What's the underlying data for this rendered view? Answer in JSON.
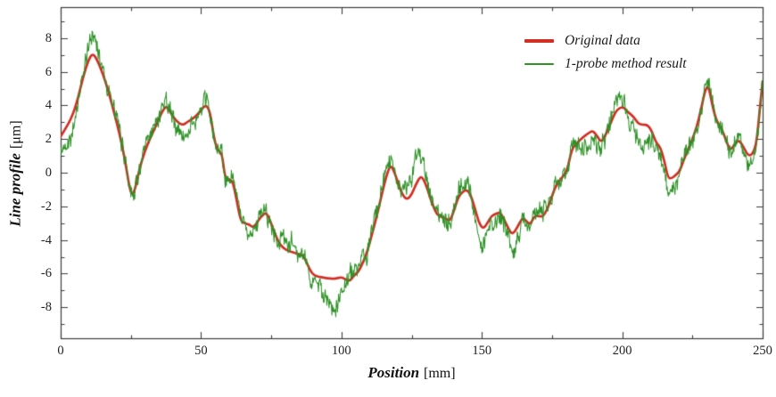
{
  "figure": {
    "background": "#ffffff",
    "axis_color": "#3d3d3d",
    "text_color": "#1a1a1a"
  },
  "chart_data": {
    "type": "line",
    "title": "",
    "xlabel": {
      "main": "Position",
      "unit": "[mm]"
    },
    "ylabel": {
      "main": "Line profile",
      "unit": "[μm]"
    },
    "x_axis": {
      "range": [
        0,
        250
      ],
      "major_ticks": [
        0,
        50,
        100,
        150,
        200,
        250
      ],
      "minor_ticks": [
        25,
        75,
        125,
        175,
        225
      ],
      "tick_labels": [
        "0",
        "50",
        "100",
        "150",
        "200",
        "250"
      ]
    },
    "y_axis": {
      "range": [
        -9.84,
        9.84
      ],
      "major_ticks": [
        -8,
        -6,
        -4,
        -2,
        0,
        2,
        4,
        6,
        8
      ],
      "minor_ticks": [
        -9,
        -7,
        -5,
        -3,
        -1,
        1,
        3,
        5,
        7,
        9
      ],
      "tick_labels": [
        "-8",
        "-6",
        "-4",
        "-2",
        "0",
        "2",
        "4",
        "6",
        "8"
      ]
    },
    "grid": false,
    "legend": {
      "position": "top-right",
      "items": [
        {
          "label": "Original data",
          "color": "#d12f24",
          "line_width": 4
        },
        {
          "label": "1-probe method result",
          "color": "#2e9227",
          "line_width": 2
        }
      ]
    },
    "series": [
      {
        "name": "Original data",
        "color": "#d12f24",
        "width": 2.7,
        "style": "smooth",
        "points": [
          [
            0,
            2.15
          ],
          [
            2,
            2.7
          ],
          [
            4,
            3.3
          ],
          [
            6,
            4.3
          ],
          [
            8,
            5.7
          ],
          [
            10,
            6.75
          ],
          [
            11.5,
            7.1
          ],
          [
            13,
            6.7
          ],
          [
            15,
            5.9
          ],
          [
            17,
            4.85
          ],
          [
            19,
            3.6
          ],
          [
            21,
            2.3
          ],
          [
            23,
            0.7
          ],
          [
            24.5,
            -0.9
          ],
          [
            25.5,
            -1.35
          ],
          [
            26.5,
            -1.0
          ],
          [
            28,
            0.2
          ],
          [
            30,
            1.3
          ],
          [
            32,
            2.1
          ],
          [
            34,
            2.8
          ],
          [
            36,
            3.6
          ],
          [
            37.7,
            4.0
          ],
          [
            39,
            3.6
          ],
          [
            41,
            3.1
          ],
          [
            43.4,
            2.8
          ],
          [
            45,
            3.0
          ],
          [
            47,
            3.2
          ],
          [
            49,
            3.5
          ],
          [
            50.8,
            3.9
          ],
          [
            52,
            4.0
          ],
          [
            53.2,
            3.6
          ],
          [
            54.6,
            2.1
          ],
          [
            55.5,
            1.5
          ],
          [
            56.5,
            1.25
          ],
          [
            57.5,
            1.1
          ],
          [
            58.5,
            -0.3
          ],
          [
            60,
            -0.4
          ],
          [
            61.2,
            -0.5
          ],
          [
            62.2,
            -1.2
          ],
          [
            63.3,
            -2.2
          ],
          [
            64.3,
            -2.9
          ],
          [
            65.5,
            -3.0
          ],
          [
            66.5,
            -3.05
          ],
          [
            67.3,
            -3.1
          ],
          [
            68.4,
            -3.25
          ],
          [
            69.5,
            -3.1
          ],
          [
            70.5,
            -2.8
          ],
          [
            71.5,
            -2.6
          ],
          [
            72.5,
            -2.45
          ],
          [
            73.3,
            -2.4
          ],
          [
            74.5,
            -2.8
          ],
          [
            76,
            -3.5
          ],
          [
            77.8,
            -4.2
          ],
          [
            79.5,
            -4.5
          ],
          [
            81,
            -4.65
          ],
          [
            83,
            -4.75
          ],
          [
            85,
            -4.85
          ],
          [
            86.5,
            -4.95
          ],
          [
            88,
            -5.5
          ],
          [
            89.5,
            -6.0
          ],
          [
            91,
            -6.15
          ],
          [
            92.5,
            -6.2
          ],
          [
            94,
            -6.25
          ],
          [
            96,
            -6.3
          ],
          [
            98,
            -6.3
          ],
          [
            100,
            -6.2
          ],
          [
            101.5,
            -6.35
          ],
          [
            103,
            -6.45
          ],
          [
            104.5,
            -6.1
          ],
          [
            106,
            -5.9
          ],
          [
            107.5,
            -5.4
          ],
          [
            109,
            -4.8
          ],
          [
            111,
            -3.6
          ],
          [
            113,
            -2.3
          ],
          [
            114.5,
            -1.2
          ],
          [
            116,
            -0.2
          ],
          [
            117.5,
            0.5
          ],
          [
            119,
            0.0
          ],
          [
            120.5,
            -0.8
          ],
          [
            122,
            -1.4
          ],
          [
            123.5,
            -1.6
          ],
          [
            125,
            -1.3
          ],
          [
            126.5,
            -0.7
          ],
          [
            128,
            -0.25
          ],
          [
            129,
            -0.3
          ],
          [
            130.5,
            -0.9
          ],
          [
            132,
            -1.7
          ],
          [
            133.7,
            -2.4
          ],
          [
            135,
            -2.6
          ],
          [
            137,
            -2.7
          ],
          [
            138.6,
            -2.9
          ],
          [
            140,
            -2.3
          ],
          [
            141.5,
            -1.5
          ],
          [
            143,
            -1.15
          ],
          [
            144.5,
            -1.0
          ],
          [
            146,
            -1.3
          ],
          [
            147.5,
            -2.1
          ],
          [
            149,
            -3.0
          ],
          [
            150.5,
            -3.35
          ],
          [
            152,
            -3.0
          ],
          [
            153.5,
            -2.55
          ],
          [
            155,
            -2.45
          ],
          [
            156.5,
            -2.35
          ],
          [
            158,
            -2.8
          ],
          [
            160,
            -3.5
          ],
          [
            161,
            -3.65
          ],
          [
            162.5,
            -3.3
          ],
          [
            164.5,
            -2.65
          ],
          [
            166,
            -2.9
          ],
          [
            167.2,
            -3.1
          ],
          [
            168.8,
            -2.55
          ],
          [
            170.5,
            -2.6
          ],
          [
            172,
            -2.6
          ],
          [
            174,
            -1.9
          ],
          [
            176.2,
            -0.8
          ],
          [
            178,
            -0.4
          ],
          [
            180.4,
            0.1
          ],
          [
            182,
            1.4
          ],
          [
            184,
            1.8
          ],
          [
            186,
            2.1
          ],
          [
            188,
            2.35
          ],
          [
            189.5,
            2.5
          ],
          [
            191,
            2.2
          ],
          [
            192.5,
            1.8
          ],
          [
            194,
            2.2
          ],
          [
            196,
            3.0
          ],
          [
            197.5,
            3.6
          ],
          [
            199,
            3.85
          ],
          [
            200.5,
            3.9
          ],
          [
            202,
            3.6
          ],
          [
            204,
            3.35
          ],
          [
            205.5,
            2.95
          ],
          [
            207,
            2.85
          ],
          [
            209,
            2.85
          ],
          [
            210.5,
            2.5
          ],
          [
            212,
            1.8
          ],
          [
            213.5,
            1.55
          ],
          [
            215,
            0.7
          ],
          [
            216.3,
            -0.3
          ],
          [
            217.5,
            -0.35
          ],
          [
            219,
            -0.15
          ],
          [
            220.5,
            0.1
          ],
          [
            222,
            0.8
          ],
          [
            223.5,
            1.4
          ],
          [
            225,
            2.0
          ],
          [
            226.5,
            2.7
          ],
          [
            228,
            3.7
          ],
          [
            229.5,
            4.9
          ],
          [
            230.7,
            5.2
          ],
          [
            232,
            4.1
          ],
          [
            233,
            3.4
          ],
          [
            234,
            2.95
          ],
          [
            235.5,
            2.6
          ],
          [
            237,
            1.9
          ],
          [
            238.5,
            1.3
          ],
          [
            240,
            1.7
          ],
          [
            241.5,
            1.95
          ],
          [
            243,
            1.6
          ],
          [
            244.5,
            1.1
          ],
          [
            245.7,
            1.0
          ],
          [
            247,
            1.3
          ],
          [
            248,
            2.0
          ],
          [
            249,
            3.8
          ],
          [
            250,
            5.4
          ]
        ]
      },
      {
        "name": "1-probe method result",
        "color": "#2e9227",
        "width": 1.05,
        "style": "noisy",
        "description": "Tracks Original data with high-frequency measurement noise: value = original + deviation + noise",
        "deviation_points": [
          [
            0,
            -1.1
          ],
          [
            3,
            -0.9
          ],
          [
            6,
            -0.4
          ],
          [
            9,
            0.4
          ],
          [
            11.5,
            1.2
          ],
          [
            14,
            0.6
          ],
          [
            17,
            0.1
          ],
          [
            20,
            0
          ],
          [
            23,
            0.2
          ],
          [
            25.5,
            0.3
          ],
          [
            28,
            0
          ],
          [
            31,
            0
          ],
          [
            34,
            0.1
          ],
          [
            37.5,
            0.6
          ],
          [
            40,
            -0.2
          ],
          [
            44,
            -0.8
          ],
          [
            46,
            -0.5
          ],
          [
            49,
            0
          ],
          [
            52,
            0.1
          ],
          [
            55,
            -0.3
          ],
          [
            58,
            0
          ],
          [
            61,
            0
          ],
          [
            64,
            0
          ],
          [
            67,
            -0.2
          ],
          [
            69,
            -0.4
          ],
          [
            72,
            0.2
          ],
          [
            74,
            0.1
          ],
          [
            76,
            0
          ],
          [
            79,
            0.5
          ],
          [
            81,
            0.6
          ],
          [
            83,
            0.3
          ],
          [
            85,
            0.1
          ],
          [
            87,
            -0.1
          ],
          [
            90,
            -0.4
          ],
          [
            92,
            -0.6
          ],
          [
            94,
            -1.0
          ],
          [
            96,
            -1.9
          ],
          [
            97,
            -2.2
          ],
          [
            98,
            -1.9
          ],
          [
            99.5,
            -1.1
          ],
          [
            101,
            -0.5
          ],
          [
            103,
            0.5
          ],
          [
            105,
            0.1
          ],
          [
            107,
            0
          ],
          [
            110,
            0.1
          ],
          [
            113,
            0.4
          ],
          [
            115,
            0.5
          ],
          [
            117,
            0.6
          ],
          [
            119,
            0.1
          ],
          [
            121,
            0.2
          ],
          [
            123,
            0.5
          ],
          [
            125,
            0.9
          ],
          [
            126.5,
            1.6
          ],
          [
            128,
            1.7
          ],
          [
            129.5,
            1.2
          ],
          [
            131,
            0.5
          ],
          [
            133,
            0.1
          ],
          [
            135,
            0
          ],
          [
            137,
            -0.4
          ],
          [
            139,
            -0.1
          ],
          [
            141,
            0.3
          ],
          [
            143,
            0.4
          ],
          [
            145,
            0.5
          ],
          [
            146.5,
            0
          ],
          [
            148,
            -0.6
          ],
          [
            149.5,
            -1.1
          ],
          [
            151,
            -0.9
          ],
          [
            153,
            -0.4
          ],
          [
            155,
            -0.2
          ],
          [
            157,
            -0.1
          ],
          [
            159,
            -0.5
          ],
          [
            161,
            -1.0
          ],
          [
            163,
            -0.5
          ],
          [
            165,
            -0.2
          ],
          [
            167,
            -0.4
          ],
          [
            169,
            0.2
          ],
          [
            171,
            0.3
          ],
          [
            174,
            0.1
          ],
          [
            177,
            0.2
          ],
          [
            180,
            0.3
          ],
          [
            182,
            0.1
          ],
          [
            184,
            -0.2
          ],
          [
            186,
            -0.4
          ],
          [
            188,
            -0.7
          ],
          [
            190,
            -0.6
          ],
          [
            192,
            -0.3
          ],
          [
            194,
            0
          ],
          [
            196,
            0.2
          ],
          [
            198,
            0.4
          ],
          [
            200,
            0.3
          ],
          [
            202,
            0
          ],
          [
            204,
            -0.5
          ],
          [
            206,
            -1.0
          ],
          [
            208,
            -1.2
          ],
          [
            210,
            -1.0
          ],
          [
            212,
            -0.7
          ],
          [
            214,
            -0.5
          ],
          [
            216.5,
            -1.0
          ],
          [
            218,
            -0.4
          ],
          [
            220,
            -0.2
          ],
          [
            222,
            -0.1
          ],
          [
            224,
            0
          ],
          [
            226,
            0.2
          ],
          [
            228,
            0.1
          ],
          [
            230,
            0.2
          ],
          [
            232,
            0.1
          ],
          [
            234,
            0.3
          ],
          [
            236,
            0.1
          ],
          [
            238,
            -0.1
          ],
          [
            240,
            0
          ],
          [
            242,
            0.1
          ],
          [
            243,
            -0.3
          ],
          [
            244.5,
            -0.7
          ],
          [
            246,
            -0.5
          ],
          [
            247.5,
            -0.2
          ],
          [
            248.5,
            0
          ],
          [
            250,
            0.1
          ]
        ],
        "noise": {
          "seed": 42,
          "step_mm": 0.2,
          "white_amp": 0.42,
          "walk_amp": 0.5,
          "walk_persistence": 0.72,
          "walk_gain": 0.55,
          "clamp": 1.0
        },
        "extremes": {
          "max_point": [
            11.5,
            8.5
          ],
          "min_point": [
            96.5,
            -8.7
          ]
        }
      }
    ]
  }
}
